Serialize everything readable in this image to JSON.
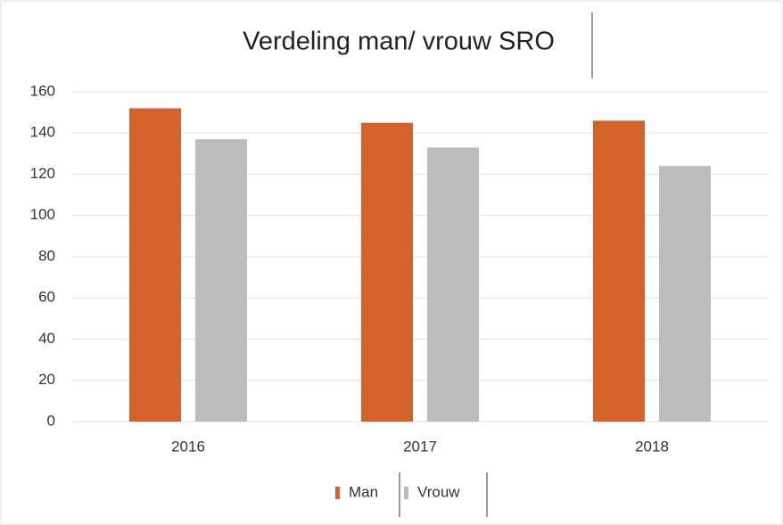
{
  "chart_data": {
    "type": "bar",
    "title": "Verdeling man/ vrouw SRO",
    "categories": [
      "2016",
      "2017",
      "2018"
    ],
    "series": [
      {
        "name": "Man",
        "color": "#d5622a",
        "values": [
          152,
          145,
          146
        ]
      },
      {
        "name": "Vrouw",
        "color": "#bcbcbf",
        "values": [
          137,
          133,
          124
        ]
      }
    ],
    "ylim": [
      0,
      160
    ],
    "yticks": [
      0,
      20,
      40,
      60,
      80,
      100,
      120,
      140,
      160
    ],
    "grid": true,
    "legend": "bottom"
  }
}
